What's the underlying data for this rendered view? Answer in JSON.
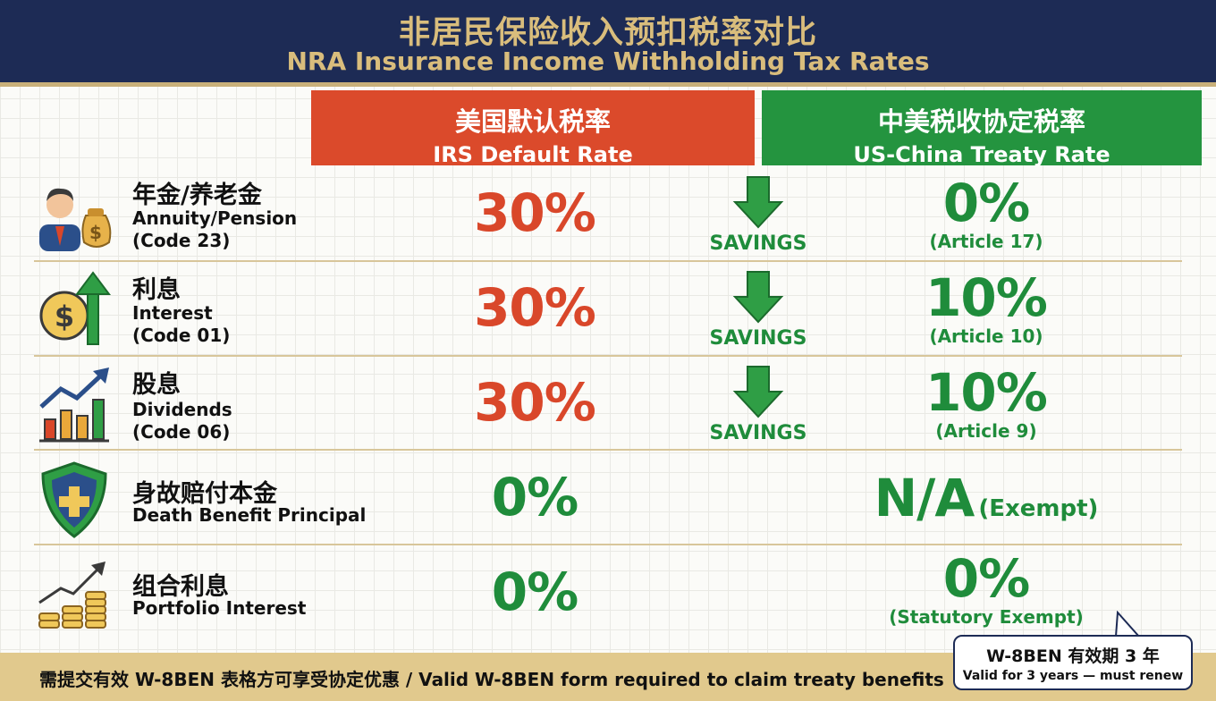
{
  "header": {
    "title_zh": "非居民保险收入预扣税率对比",
    "title_en": "NRA Insurance Income Withholding Tax Rates"
  },
  "columns": {
    "irs": {
      "zh": "美国默认税率",
      "en": "IRS Default Rate",
      "color": "#db4a2b"
    },
    "treaty": {
      "zh": "中美税收协定税率",
      "en": "US-China Treaty Rate",
      "color": "#24943f"
    }
  },
  "rows": [
    {
      "icon": "person-money-bag-icon",
      "zh": "年金/养老金",
      "en": "Annuity/Pension",
      "code": "(Code 23)",
      "irs_rate": "30%",
      "savings": "SAVINGS",
      "treaty_rate": "0%",
      "treaty_note": "(Article 17)"
    },
    {
      "icon": "coin-arrow-up-icon",
      "zh": "利息",
      "en": "Interest",
      "code": "(Code 01)",
      "irs_rate": "30%",
      "savings": "SAVINGS",
      "treaty_rate": "10%",
      "treaty_note": "(Article 10)"
    },
    {
      "icon": "growth-chart-icon",
      "zh": "股息",
      "en": "Dividends",
      "code": "(Code 06)",
      "irs_rate": "30%",
      "savings": "SAVINGS",
      "treaty_rate": "10%",
      "treaty_note": "(Article 9)"
    },
    {
      "icon": "shield-cross-icon",
      "zh": "身故赔付本金",
      "en": "Death Benefit Principal",
      "irs_rate": "0%",
      "treaty_rate": "N/A",
      "treaty_suffix": "(Exempt)"
    },
    {
      "icon": "coin-stacks-icon",
      "zh": "组合利息",
      "en": "Portfolio Interest",
      "irs_rate": "0%",
      "treaty_rate": "0%",
      "treaty_note": "(Statutory Exempt)"
    }
  ],
  "footer": {
    "text": "需提交有效 W-8BEN 表格方可享受协定优惠 / Valid W-8BEN form required to claim treaty benefits"
  },
  "callout": {
    "zh": "W-8BEN 有效期 3 年",
    "en": "Valid for 3 years — must renew"
  }
}
